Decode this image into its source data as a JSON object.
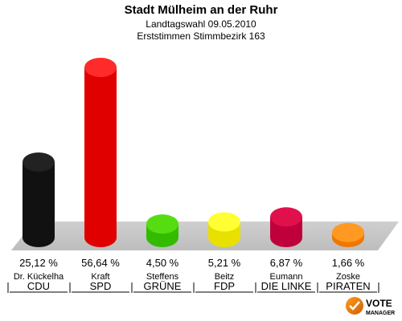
{
  "chart_data": {
    "type": "bar",
    "title": "Stadt Mülheim an der Ruhr",
    "subtitle1": "Landtagswahl 09.05.2010",
    "subtitle2": "Erststimmen Stimmbezirk 163",
    "ylim": [
      0,
      60
    ],
    "bars": [
      {
        "candidate": "Dr. Kückelha",
        "party": "CDU",
        "value": 25.12,
        "label": "25,12 %",
        "color": "#111111",
        "top": "#222222"
      },
      {
        "candidate": "Kraft",
        "party": "SPD",
        "value": 56.64,
        "label": "56,64 %",
        "color": "#e00000",
        "top": "#ff2a2a"
      },
      {
        "candidate": "Steffens",
        "party": "GRÜNE",
        "value": 4.5,
        "label": "4,50 %",
        "color": "#33bb00",
        "top": "#55dd11"
      },
      {
        "candidate": "Beitz",
        "party": "FDP",
        "value": 5.21,
        "label": "5,21 %",
        "color": "#e8e000",
        "top": "#ffff33"
      },
      {
        "candidate": "Eumann",
        "party": "DIE LINKE",
        "value": 6.87,
        "label": "6,87 %",
        "color": "#c0003a",
        "top": "#e0104c"
      },
      {
        "candidate": "Zoske",
        "party": "PIRATEN",
        "value": 1.66,
        "label": "1,66 %",
        "color": "#ee7700",
        "top": "#ff9922"
      }
    ]
  },
  "branding": {
    "logo_line1": "VOTE",
    "logo_line2": "MANAGER"
  }
}
